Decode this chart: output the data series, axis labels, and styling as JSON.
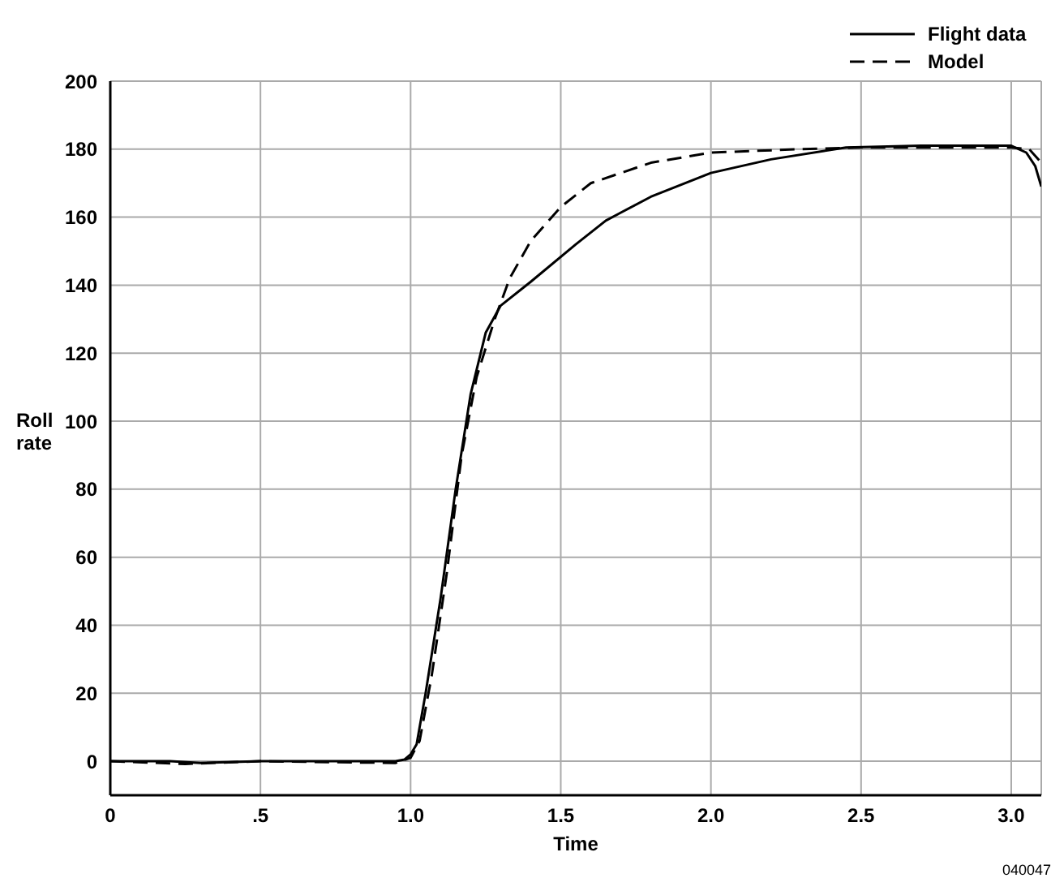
{
  "chart_data": {
    "type": "line",
    "xlabel": "Time",
    "ylabel": "Roll rate",
    "xlim": [
      0,
      3.1
    ],
    "ylim": [
      -10,
      200
    ],
    "xticks": [
      0,
      {
        "value": 0.5,
        "label": ".5"
      },
      {
        "value": 1.0,
        "label": "1.0"
      },
      {
        "value": 1.5,
        "label": "1.5"
      },
      {
        "value": 2.0,
        "label": "2.0"
      },
      {
        "value": 2.5,
        "label": "2.5"
      },
      {
        "value": 3.0,
        "label": "3.0"
      }
    ],
    "yticks": [
      0,
      20,
      40,
      60,
      80,
      100,
      120,
      140,
      160,
      180,
      200
    ],
    "grid": true,
    "legend": "top right",
    "marker": "none",
    "annotations": [
      "040047"
    ],
    "series": [
      {
        "name": "Flight data",
        "color": "#000000",
        "line_style": "solid",
        "x": [
          0,
          0.2,
          0.3,
          0.5,
          0.95,
          0.98,
          1.0,
          1.02,
          1.05,
          1.1,
          1.15,
          1.2,
          1.25,
          1.3,
          1.4,
          1.55,
          1.65,
          1.8,
          2.0,
          2.2,
          2.45,
          2.7,
          3.0,
          3.05,
          3.08,
          3.1
        ],
        "values": [
          0,
          0,
          -0.5,
          0,
          0,
          0.5,
          2,
          5,
          20,
          48,
          80,
          108,
          126,
          134,
          141,
          152,
          159,
          166,
          173,
          177,
          180.5,
          181,
          181,
          179,
          175,
          169
        ]
      },
      {
        "name": "Model",
        "color": "#000000",
        "line_style": "dashed",
        "x": [
          0,
          0.25,
          0.5,
          0.95,
          1.0,
          1.03,
          1.07,
          1.12,
          1.17,
          1.22,
          1.28,
          1.33,
          1.4,
          1.5,
          1.6,
          1.8,
          2.0,
          2.3,
          2.5,
          3.0,
          3.06,
          3.1
        ],
        "values": [
          0,
          -0.8,
          0,
          -0.5,
          1,
          6,
          25,
          55,
          90,
          113,
          130,
          142,
          153,
          163,
          170,
          176,
          179,
          180,
          180.5,
          180.5,
          180,
          176
        ]
      }
    ]
  }
}
